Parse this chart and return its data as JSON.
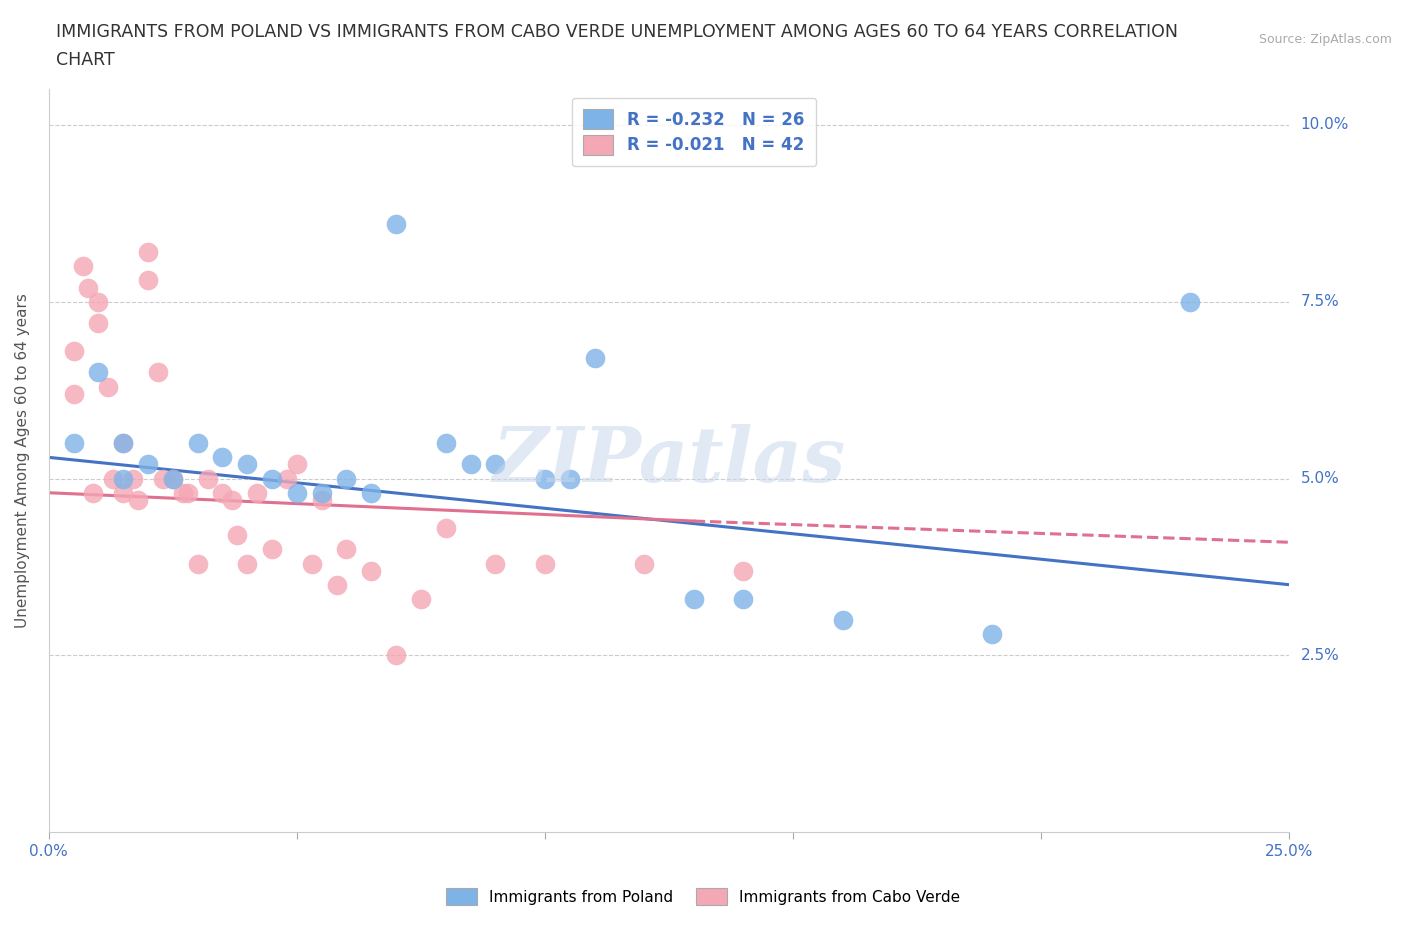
{
  "title_line1": "IMMIGRANTS FROM POLAND VS IMMIGRANTS FROM CABO VERDE UNEMPLOYMENT AMONG AGES 60 TO 64 YEARS CORRELATION",
  "title_line2": "CHART",
  "source_text": "Source: ZipAtlas.com",
  "ylabel": "Unemployment Among Ages 60 to 64 years",
  "xlim": [
    0.0,
    0.25
  ],
  "ylim": [
    0.0,
    0.105
  ],
  "xticks": [
    0.0,
    0.05,
    0.1,
    0.15,
    0.2,
    0.25
  ],
  "yticks": [
    0.0,
    0.025,
    0.05,
    0.075,
    0.1
  ],
  "xticklabels": [
    "0.0%",
    "",
    "",
    "",
    "",
    "25.0%"
  ],
  "yticklabels": [
    "",
    "2.5%",
    "5.0%",
    "7.5%",
    "10.0%"
  ],
  "poland_color": "#7EB3E8",
  "poland_line_color": "#4472C4",
  "caboverde_color": "#F4A7B5",
  "caboverde_line_color": "#E07090",
  "caboverde_line_dashed_color": "#E07090",
  "poland_R": -0.232,
  "poland_N": 26,
  "caboverde_R": -0.021,
  "caboverde_N": 42,
  "poland_x": [
    0.005,
    0.01,
    0.015,
    0.015,
    0.02,
    0.025,
    0.03,
    0.035,
    0.04,
    0.045,
    0.05,
    0.055,
    0.06,
    0.065,
    0.07,
    0.08,
    0.085,
    0.09,
    0.1,
    0.105,
    0.11,
    0.13,
    0.14,
    0.16,
    0.19,
    0.23
  ],
  "poland_y": [
    0.055,
    0.065,
    0.055,
    0.05,
    0.052,
    0.05,
    0.055,
    0.053,
    0.052,
    0.05,
    0.048,
    0.048,
    0.05,
    0.048,
    0.086,
    0.055,
    0.052,
    0.052,
    0.05,
    0.05,
    0.067,
    0.033,
    0.033,
    0.03,
    0.028,
    0.075
  ],
  "caboverde_x": [
    0.005,
    0.005,
    0.007,
    0.008,
    0.009,
    0.01,
    0.01,
    0.012,
    0.013,
    0.015,
    0.015,
    0.017,
    0.018,
    0.02,
    0.02,
    0.022,
    0.023,
    0.025,
    0.027,
    0.028,
    0.03,
    0.032,
    0.035,
    0.037,
    0.038,
    0.04,
    0.042,
    0.045,
    0.048,
    0.05,
    0.053,
    0.055,
    0.058,
    0.06,
    0.065,
    0.07,
    0.075,
    0.08,
    0.09,
    0.1,
    0.12,
    0.14
  ],
  "caboverde_y": [
    0.068,
    0.062,
    0.08,
    0.077,
    0.048,
    0.075,
    0.072,
    0.063,
    0.05,
    0.055,
    0.048,
    0.05,
    0.047,
    0.082,
    0.078,
    0.065,
    0.05,
    0.05,
    0.048,
    0.048,
    0.038,
    0.05,
    0.048,
    0.047,
    0.042,
    0.038,
    0.048,
    0.04,
    0.05,
    0.052,
    0.038,
    0.047,
    0.035,
    0.04,
    0.037,
    0.025,
    0.033,
    0.043,
    0.038,
    0.038,
    0.038,
    0.037
  ],
  "watermark_text": "ZIPatlas",
  "background_color": "#ffffff",
  "grid_color": "#cccccc",
  "title_fontsize": 12.5,
  "source_fontsize": 9,
  "axis_label_fontsize": 11,
  "tick_fontsize": 11,
  "legend_fontsize": 12,
  "tick_color": "#4472C4",
  "legend_text_color": "#4472C4"
}
